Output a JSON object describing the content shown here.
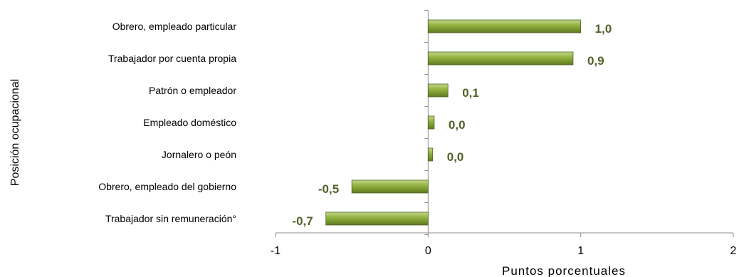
{
  "chart_data": {
    "type": "bar",
    "orientation": "horizontal",
    "categories": [
      "Obrero, empleado particular",
      "Trabajador por cuenta propia",
      "Patrón o empleador",
      "Empleado doméstico",
      "Jornalero o peón",
      "Obrero, empleado del gobierno",
      "Trabajador sin remuneración°"
    ],
    "values": [
      1.0,
      0.95,
      0.13,
      0.04,
      0.03,
      -0.5,
      -0.67
    ],
    "data_labels": [
      "1,0",
      "0,9",
      "0,1",
      "0,0",
      "0,0",
      "-0,5",
      "-0,7"
    ],
    "xlabel": "Puntos porcentuales",
    "ylabel": "Posición ocupacional",
    "xlim": [
      -1,
      2
    ],
    "x_ticks": [
      -1,
      0,
      1,
      2
    ],
    "x_tick_labels": [
      "-1",
      "0",
      "1",
      "2"
    ],
    "grid": false,
    "legend": "none",
    "bar_color": "#7f9f2f"
  }
}
